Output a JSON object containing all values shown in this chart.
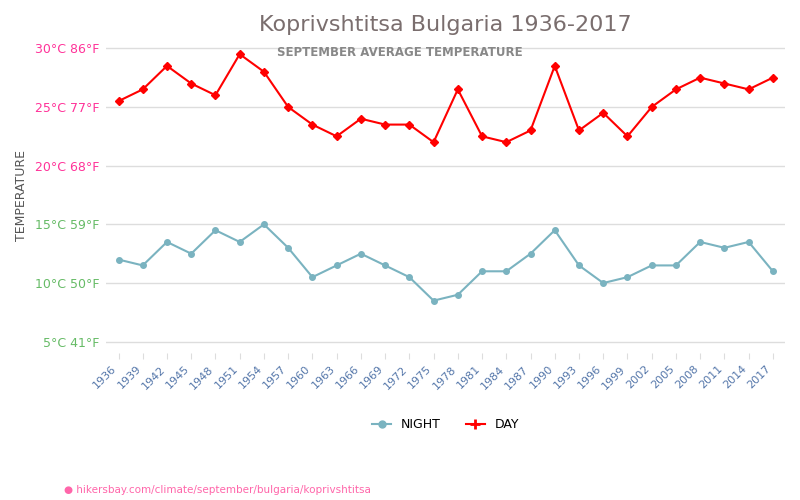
{
  "title": "Koprivshtitsa Bulgaria 1936-2017",
  "subtitle": "SEPTEMBER AVERAGE TEMPERATURE",
  "ylabel": "TEMPERATURE",
  "url": "hikersbay.com/climate/september/bulgaria/koprivshtitsa",
  "background_color": "#ffffff",
  "grid_color": "#dddddd",
  "day_color": "#ff0000",
  "night_color": "#7ab3c0",
  "title_color": "#7a6e6e",
  "subtitle_color": "#888888",
  "ylabel_color": "#555555",
  "tick_color_red": "#ff3399",
  "tick_color_green": "#66cc66",
  "years": [
    1936,
    1939,
    1942,
    1945,
    1948,
    1951,
    1954,
    1957,
    1960,
    1963,
    1966,
    1969,
    1972,
    1975,
    1978,
    1981,
    1984,
    1987,
    1990,
    1993,
    1996,
    1999,
    2002,
    2005,
    2008,
    2011,
    2014,
    2017
  ],
  "day_temps": [
    25.5,
    26.5,
    28.5,
    27.0,
    26.0,
    29.5,
    28.0,
    25.0,
    23.5,
    22.5,
    24.0,
    23.5,
    23.5,
    22.0,
    26.5,
    22.5,
    22.0,
    23.0,
    28.5,
    23.0,
    24.5,
    22.5,
    25.0,
    26.5,
    27.5,
    27.0,
    26.5,
    27.5
  ],
  "night_temps": [
    12.0,
    11.5,
    13.5,
    12.5,
    14.5,
    13.5,
    15.0,
    13.0,
    10.5,
    11.5,
    12.5,
    11.5,
    10.5,
    8.5,
    9.0,
    11.0,
    11.0,
    12.5,
    14.5,
    11.5,
    10.0,
    10.5,
    11.5,
    11.5,
    13.5,
    13.0,
    13.5,
    11.0
  ],
  "ylim_min": 4,
  "ylim_max": 31,
  "yticks_celsius": [
    5,
    10,
    15,
    20,
    25,
    30
  ],
  "yticks_fahrenheit": [
    41,
    50,
    59,
    68,
    77,
    86
  ]
}
